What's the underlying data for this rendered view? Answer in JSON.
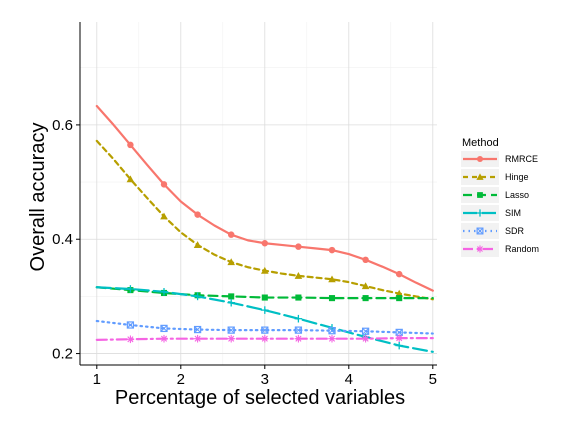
{
  "chart_data": {
    "type": "line",
    "title": "",
    "xlabel": "Percentage of selected variables",
    "ylabel": "Overall accuracy",
    "xlim": [
      0.8,
      5.05
    ],
    "ylim": [
      0.18,
      0.78
    ],
    "xticks": [
      1,
      2,
      3,
      4,
      5
    ],
    "yticks": [
      0.2,
      0.4,
      0.6
    ],
    "ytick_labels": [
      "0.2",
      "0.4",
      "0.6"
    ],
    "grid": true,
    "legend": {
      "title": "Method",
      "position": "right"
    },
    "series": [
      {
        "name": "RMRCE",
        "color": "#f8766d",
        "dash": "",
        "marker": "circle",
        "x": [
          1,
          1.2,
          1.4,
          1.6,
          1.8,
          2,
          2.2,
          2.4,
          2.6,
          2.8,
          3,
          3.2,
          3.4,
          3.6,
          3.8,
          4,
          4.2,
          4.4,
          4.6,
          4.8,
          5
        ],
        "y": [
          0.633,
          0.6,
          0.565,
          0.53,
          0.496,
          0.466,
          0.443,
          0.424,
          0.408,
          0.398,
          0.393,
          0.39,
          0.387,
          0.384,
          0.381,
          0.374,
          0.364,
          0.352,
          0.339,
          0.324,
          0.31
        ],
        "marker_x": [
          1.4,
          1.8,
          2.2,
          2.6,
          3,
          3.4,
          3.8,
          4.2,
          4.6
        ]
      },
      {
        "name": "Hinge",
        "color": "#b79f00",
        "dash": "5,4",
        "marker": "triangle",
        "x": [
          1,
          1.2,
          1.4,
          1.6,
          1.8,
          2,
          2.2,
          2.4,
          2.6,
          2.8,
          3,
          3.2,
          3.4,
          3.6,
          3.8,
          4,
          4.2,
          4.4,
          4.6,
          4.8,
          5
        ],
        "y": [
          0.572,
          0.54,
          0.505,
          0.472,
          0.44,
          0.412,
          0.39,
          0.373,
          0.36,
          0.351,
          0.345,
          0.34,
          0.336,
          0.333,
          0.33,
          0.325,
          0.318,
          0.311,
          0.305,
          0.3,
          0.295
        ],
        "marker_x": [
          1.4,
          1.8,
          2.2,
          2.6,
          3,
          3.4,
          3.8,
          4.2,
          4.6
        ]
      },
      {
        "name": "Lasso",
        "color": "#00ba38",
        "dash": "9,5",
        "marker": "square",
        "x": [
          1,
          1.4,
          1.8,
          2.2,
          2.6,
          3,
          3.4,
          3.8,
          4.2,
          4.6,
          5
        ],
        "y": [
          0.316,
          0.311,
          0.306,
          0.302,
          0.3,
          0.298,
          0.298,
          0.297,
          0.297,
          0.297,
          0.297
        ],
        "marker_x": [
          1.4,
          1.8,
          2.2,
          2.6,
          3,
          3.4,
          3.8,
          4.2,
          4.6
        ]
      },
      {
        "name": "SIM",
        "color": "#00bfc4",
        "dash": "14,5",
        "marker": "plus",
        "x": [
          1,
          1.4,
          1.8,
          2.2,
          2.6,
          3,
          3.4,
          3.8,
          4.2,
          4.6,
          5
        ],
        "y": [
          0.316,
          0.313,
          0.308,
          0.3,
          0.289,
          0.276,
          0.261,
          0.245,
          0.229,
          0.214,
          0.203
        ],
        "marker_x": [
          1.4,
          1.8,
          2.2,
          2.6,
          3,
          3.4,
          3.8,
          4.2,
          4.6
        ]
      },
      {
        "name": "SDR",
        "color": "#619cff",
        "dash": "1.5,4",
        "marker": "boxx",
        "x": [
          1,
          1.4,
          1.8,
          2.2,
          2.6,
          3,
          3.4,
          3.8,
          4.2,
          4.6,
          5
        ],
        "y": [
          0.257,
          0.25,
          0.244,
          0.242,
          0.241,
          0.241,
          0.241,
          0.24,
          0.239,
          0.237,
          0.235
        ],
        "marker_x": [
          1.4,
          1.8,
          2.2,
          2.6,
          3,
          3.4,
          3.8,
          4.2,
          4.6
        ]
      },
      {
        "name": "Random",
        "color": "#f564e3",
        "dash": "10,4,2,4",
        "marker": "asterisk",
        "x": [
          1,
          1.4,
          1.8,
          2.2,
          2.6,
          3,
          3.4,
          3.8,
          4.2,
          4.6,
          5
        ],
        "y": [
          0.224,
          0.225,
          0.226,
          0.226,
          0.226,
          0.226,
          0.226,
          0.226,
          0.226,
          0.227,
          0.227
        ],
        "marker_x": [
          1.4,
          1.8,
          2.2,
          2.6,
          3,
          3.4,
          3.8,
          4.2,
          4.6
        ]
      }
    ]
  }
}
